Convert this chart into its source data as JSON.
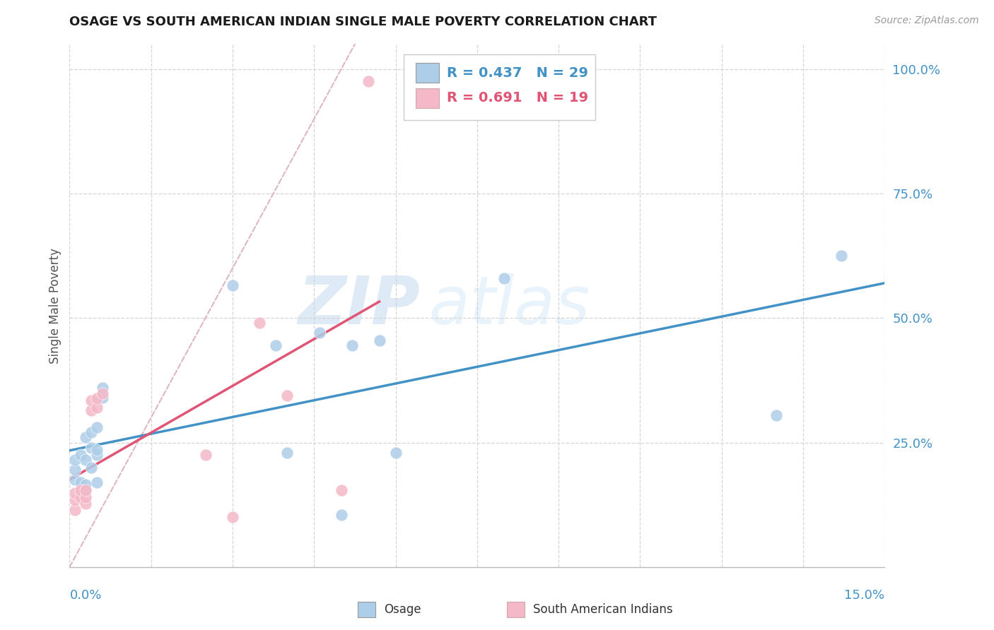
{
  "title": "OSAGE VS SOUTH AMERICAN INDIAN SINGLE MALE POVERTY CORRELATION CHART",
  "source": "Source: ZipAtlas.com",
  "ylabel": "Single Male Poverty",
  "xlim": [
    0.0,
    0.15
  ],
  "ylim": [
    0.0,
    1.05
  ],
  "osage_R": 0.437,
  "osage_N": 29,
  "sai_R": 0.691,
  "sai_N": 19,
  "osage_color": "#aecde8",
  "sai_color": "#f4b8c8",
  "osage_line_color": "#4292c6",
  "sai_line_color": "#e05575",
  "diagonal_color": "#ddb8c0",
  "osage_points_x": [
    0.001,
    0.001,
    0.001,
    0.002,
    0.002,
    0.003,
    0.003,
    0.003,
    0.003,
    0.004,
    0.004,
    0.004,
    0.005,
    0.005,
    0.005,
    0.005,
    0.006,
    0.006,
    0.03,
    0.038,
    0.04,
    0.046,
    0.05,
    0.052,
    0.057,
    0.06,
    0.08,
    0.13,
    0.142
  ],
  "osage_points_y": [
    0.175,
    0.195,
    0.215,
    0.17,
    0.225,
    0.155,
    0.165,
    0.215,
    0.26,
    0.2,
    0.24,
    0.27,
    0.17,
    0.225,
    0.235,
    0.28,
    0.34,
    0.36,
    0.565,
    0.445,
    0.23,
    0.47,
    0.105,
    0.445,
    0.455,
    0.23,
    0.58,
    0.305,
    0.625
  ],
  "sai_points_x": [
    0.001,
    0.001,
    0.001,
    0.002,
    0.002,
    0.003,
    0.003,
    0.003,
    0.004,
    0.004,
    0.005,
    0.005,
    0.006,
    0.025,
    0.03,
    0.035,
    0.04,
    0.05,
    0.055
  ],
  "sai_points_y": [
    0.115,
    0.135,
    0.148,
    0.14,
    0.155,
    0.128,
    0.14,
    0.155,
    0.315,
    0.335,
    0.32,
    0.338,
    0.348,
    0.225,
    0.1,
    0.49,
    0.345,
    0.155,
    0.975
  ],
  "background_color": "#ffffff",
  "grid_color": "#d5d5d5",
  "ytick_vals": [
    0.25,
    0.5,
    0.75,
    1.0
  ],
  "ytick_labels": [
    "25.0%",
    "50.0%",
    "75.0%",
    "100.0%"
  ],
  "xtick_label_left": "0.0%",
  "xtick_label_right": "15.0%",
  "tick_color": "#4292c6",
  "watermark_zip": "ZIP",
  "watermark_atlas": "atlas",
  "legend_bottom_labels": [
    "Osage",
    "South American Indians"
  ]
}
